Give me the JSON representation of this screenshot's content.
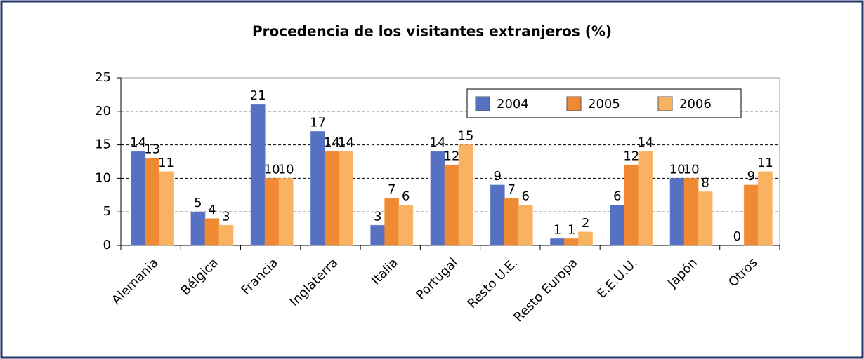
{
  "chart_data": {
    "type": "bar",
    "title": "Procedencia de los visitantes extranjeros (%)",
    "categories": [
      "Alemania",
      "Bélgica",
      "Francia",
      "Inglaterra",
      "Italia",
      "Portugal",
      "Resto U.E.",
      "Resto Europa",
      "E.E.U.U.",
      "Japón",
      "Otros"
    ],
    "series": [
      {
        "name": "2004",
        "color": "#5671c2",
        "values": [
          14,
          5,
          21,
          17,
          3,
          14,
          9,
          1,
          6,
          10,
          0
        ]
      },
      {
        "name": "2005",
        "color": "#f08a32",
        "values": [
          13,
          4,
          10,
          14,
          7,
          12,
          7,
          1,
          12,
          10,
          9
        ]
      },
      {
        "name": "2006",
        "color": "#f8b262",
        "values": [
          11,
          3,
          10,
          14,
          6,
          15,
          6,
          2,
          14,
          8,
          11
        ]
      }
    ],
    "ylim": [
      0,
      25
    ],
    "yticks": [
      0,
      5,
      10,
      15,
      20,
      25
    ],
    "grid": true,
    "legend": "top-right"
  }
}
